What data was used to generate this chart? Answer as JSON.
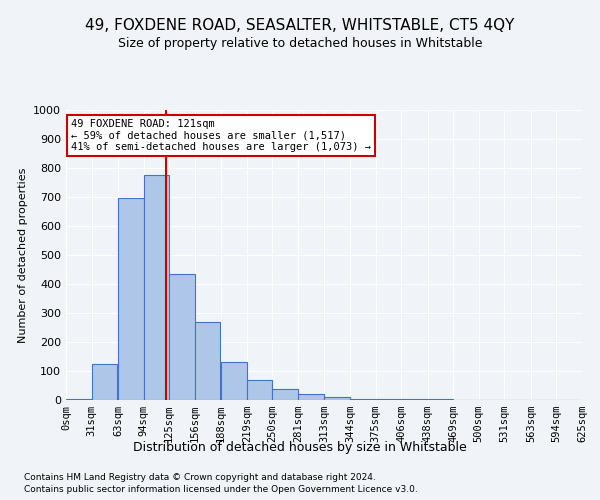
{
  "title_line1": "49, FOXDENE ROAD, SEASALTER, WHITSTABLE, CT5 4QY",
  "title_line2": "Size of property relative to detached houses in Whitstable",
  "xlabel": "Distribution of detached houses by size in Whitstable",
  "ylabel": "Number of detached properties",
  "bin_labels": [
    "0sqm",
    "31sqm",
    "63sqm",
    "94sqm",
    "125sqm",
    "156sqm",
    "188sqm",
    "219sqm",
    "250sqm",
    "281sqm",
    "313sqm",
    "344sqm",
    "375sqm",
    "406sqm",
    "438sqm",
    "469sqm",
    "500sqm",
    "531sqm",
    "563sqm",
    "594sqm",
    "625sqm"
  ],
  "bar_values": [
    5,
    125,
    695,
    775,
    435,
    270,
    130,
    68,
    37,
    20,
    10,
    5,
    2,
    2,
    2,
    0,
    0,
    0,
    0,
    0
  ],
  "bar_color": "#aec6e8",
  "bar_edge_color": "#4472c4",
  "property_line_x": 121,
  "bin_edges": [
    0,
    31,
    63,
    94,
    125,
    156,
    188,
    219,
    250,
    281,
    313,
    344,
    375,
    406,
    438,
    469,
    500,
    531,
    563,
    594,
    625
  ],
  "annotation_text": "49 FOXDENE ROAD: 121sqm\n← 59% of detached houses are smaller (1,517)\n41% of semi-detached houses are larger (1,073) →",
  "annotation_box_color": "#ffffff",
  "annotation_box_edge": "#cc0000",
  "vline_color": "#cc0000",
  "ylim": [
    0,
    1000
  ],
  "yticks": [
    0,
    100,
    200,
    300,
    400,
    500,
    600,
    700,
    800,
    900,
    1000
  ],
  "footnote1": "Contains HM Land Registry data © Crown copyright and database right 2024.",
  "footnote2": "Contains public sector information licensed under the Open Government Licence v3.0.",
  "background_color": "#f0f4f8",
  "plot_bg_color": "#f0f4f8"
}
